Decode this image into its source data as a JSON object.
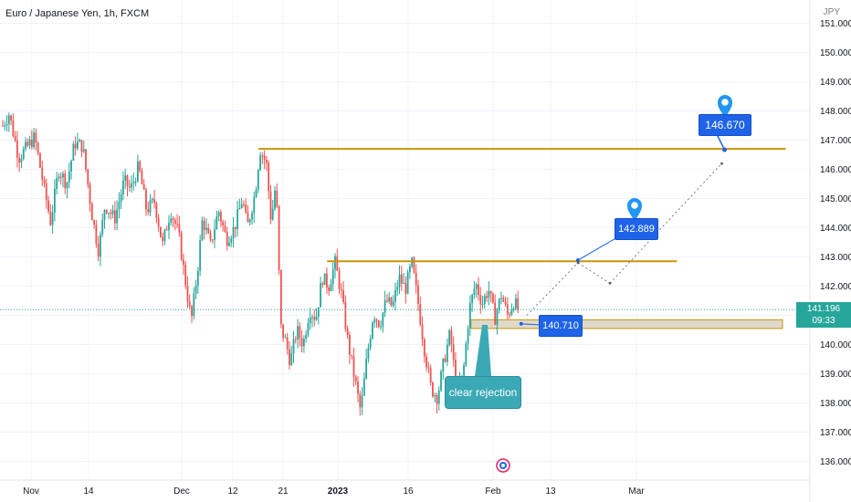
{
  "title": "Euro / Japanese Yen, 1h, FXCM",
  "currency": "JPY",
  "current_price": {
    "price": "141.196",
    "timer": "09:33"
  },
  "callouts": {
    "target_high": "146.670",
    "target_mid": "142.889",
    "entry": "140.710",
    "note": "clear rejection"
  },
  "colors": {
    "up": "#26a69a",
    "down": "#ef5350",
    "level_line": "#c8960a",
    "zone_fill": "#d9d2c0",
    "callout_blue": "#1e63e8",
    "callout_teal": "#3aa9b5",
    "grid": "#f0f3fa"
  },
  "icons": [
    "map-pin-icon",
    "calendar-events-icon"
  ],
  "chart_data": {
    "type": "candlestick",
    "title": "Euro / Japanese Yen, 1h, FXCM",
    "y_axis": {
      "label": "JPY",
      "range": [
        135.5,
        151.5
      ],
      "ticks": [
        "136.000",
        "137.000",
        "138.000",
        "139.000",
        "140.000",
        "141.000",
        "142.000",
        "143.000",
        "144.000",
        "145.000",
        "146.000",
        "147.000",
        "148.000",
        "149.000",
        "150.000",
        "151.000"
      ]
    },
    "x_axis": {
      "ticks": [
        "Nov",
        "14",
        "Dec",
        "12",
        "21",
        "2023",
        "16",
        "Feb",
        "13",
        "Mar"
      ]
    },
    "grid": true,
    "price_path": [
      {
        "x": 0,
        "y": 147.5
      },
      {
        "x": 0.4,
        "y": 147.9
      },
      {
        "x": 1,
        "y": 146.4
      },
      {
        "x": 2,
        "y": 147.1
      },
      {
        "x": 2.6,
        "y": 145.3
      },
      {
        "x": 3,
        "y": 144.2
      },
      {
        "x": 3.5,
        "y": 146.0
      },
      {
        "x": 4,
        "y": 145.5
      },
      {
        "x": 4.5,
        "y": 146.9
      },
      {
        "x": 5,
        "y": 146.8
      },
      {
        "x": 5.6,
        "y": 144.4
      },
      {
        "x": 6,
        "y": 143.2
      },
      {
        "x": 6.4,
        "y": 144.8
      },
      {
        "x": 7,
        "y": 144.3
      },
      {
        "x": 7.6,
        "y": 145.6
      },
      {
        "x": 8,
        "y": 145.3
      },
      {
        "x": 8.5,
        "y": 146.1
      },
      {
        "x": 9,
        "y": 144.6
      },
      {
        "x": 9.5,
        "y": 144.9
      },
      {
        "x": 10,
        "y": 143.4
      },
      {
        "x": 10.5,
        "y": 144.6
      },
      {
        "x": 11,
        "y": 143.8
      },
      {
        "x": 11.5,
        "y": 141.9
      },
      {
        "x": 11.8,
        "y": 140.8
      },
      {
        "x": 12.2,
        "y": 142.6
      },
      {
        "x": 12.5,
        "y": 144.3
      },
      {
        "x": 13,
        "y": 143.4
      },
      {
        "x": 13.5,
        "y": 144.6
      },
      {
        "x": 14,
        "y": 143.6
      },
      {
        "x": 14.5,
        "y": 144.0
      },
      {
        "x": 15,
        "y": 145.0
      },
      {
        "x": 15.3,
        "y": 144.0
      },
      {
        "x": 15.8,
        "y": 145.2
      },
      {
        "x": 16.1,
        "y": 146.7
      },
      {
        "x": 16.5,
        "y": 146.2
      },
      {
        "x": 16.8,
        "y": 144.2
      },
      {
        "x": 17.1,
        "y": 145.6
      },
      {
        "x": 17.4,
        "y": 140.6
      },
      {
        "x": 17.7,
        "y": 140.1
      },
      {
        "x": 18,
        "y": 139.4
      },
      {
        "x": 18.4,
        "y": 140.5
      },
      {
        "x": 18.8,
        "y": 140.0
      },
      {
        "x": 19.2,
        "y": 141.2
      },
      {
        "x": 19.6,
        "y": 140.9
      },
      {
        "x": 20,
        "y": 142.3
      },
      {
        "x": 20.4,
        "y": 142.0
      },
      {
        "x": 20.8,
        "y": 142.8
      },
      {
        "x": 21.2,
        "y": 141.7
      },
      {
        "x": 21.6,
        "y": 140.1
      },
      {
        "x": 22,
        "y": 138.9
      },
      {
        "x": 22.4,
        "y": 137.7
      },
      {
        "x": 22.8,
        "y": 139.6
      },
      {
        "x": 23.2,
        "y": 141.1
      },
      {
        "x": 23.6,
        "y": 140.7
      },
      {
        "x": 24,
        "y": 141.5
      },
      {
        "x": 24.4,
        "y": 141.3
      },
      {
        "x": 24.8,
        "y": 142.3
      },
      {
        "x": 25.2,
        "y": 141.9
      },
      {
        "x": 25.6,
        "y": 142.8
      },
      {
        "x": 26,
        "y": 141.4
      },
      {
        "x": 26.4,
        "y": 139.8
      },
      {
        "x": 26.8,
        "y": 138.5
      },
      {
        "x": 27.2,
        "y": 138.2
      },
      {
        "x": 27.6,
        "y": 139.4
      },
      {
        "x": 28,
        "y": 140.4
      },
      {
        "x": 28.4,
        "y": 138.4
      },
      {
        "x": 28.8,
        "y": 138.9
      },
      {
        "x": 29.2,
        "y": 141.2
      },
      {
        "x": 29.6,
        "y": 142.1
      },
      {
        "x": 30,
        "y": 141.4
      },
      {
        "x": 30.4,
        "y": 141.9
      },
      {
        "x": 30.8,
        "y": 140.9
      },
      {
        "x": 31.2,
        "y": 141.7
      },
      {
        "x": 31.6,
        "y": 141.0
      },
      {
        "x": 32,
        "y": 141.5
      },
      {
        "x": 32.3,
        "y": 141.1
      }
    ],
    "levels": [
      {
        "price": 146.7,
        "from_x": 16.0,
        "to_x": 49.0
      },
      {
        "price": 142.85,
        "from_x": 20.3,
        "to_x": 42.2
      }
    ],
    "zone": {
      "from_x": 29.3,
      "to_x": 48.8,
      "low": 140.55,
      "high": 140.85
    },
    "projection": [
      {
        "x": 32.8,
        "y": 141.0
      },
      {
        "x": 36.0,
        "y": 142.8
      },
      {
        "x": 38.0,
        "y": 142.1
      },
      {
        "x": 45.0,
        "y": 146.2
      }
    ],
    "targets": [
      {
        "label": "146.670",
        "x": 45.0,
        "y": 146.67
      },
      {
        "label": "142.889",
        "x": 36.0,
        "y": 142.89
      },
      {
        "label": "140.710",
        "x": 32.5,
        "y": 140.71
      }
    ],
    "current_price": 141.196
  }
}
